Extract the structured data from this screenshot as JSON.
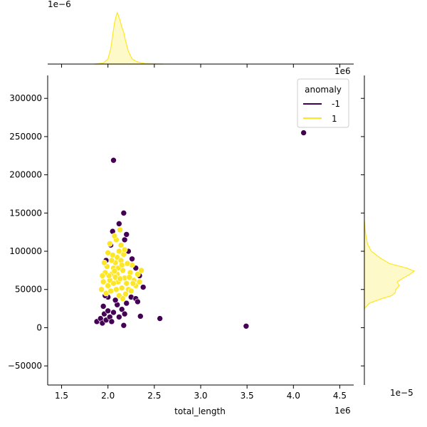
{
  "chart_data": {
    "type": "scatter",
    "title": "",
    "xlabel": "total_length",
    "ylabel": "",
    "x_scale_label": "1e6",
    "y_scale_label": "",
    "top_marginal_scale_label": "1e−6",
    "right_marginal_scale_label": "1e−5",
    "xlim": [
      1.35,
      4.65
    ],
    "ylim": [
      -75000,
      330000
    ],
    "x_ticks": [
      1.5,
      2.0,
      2.5,
      3.0,
      3.5,
      4.0,
      4.5
    ],
    "x_tick_labels": [
      "1.5",
      "2.0",
      "2.5",
      "3.0",
      "3.5",
      "4.0",
      "4.5"
    ],
    "y_ticks": [
      -50000,
      0,
      50000,
      100000,
      150000,
      200000,
      250000,
      300000
    ],
    "y_tick_labels": [
      "−50000",
      "0",
      "50000",
      "100000",
      "150000",
      "200000",
      "250000",
      "300000"
    ],
    "grid": false,
    "legend": {
      "title": "anomaly",
      "placement": "upper-right",
      "entries": [
        {
          "label": "-1",
          "color": "#440154"
        },
        {
          "label": "1",
          "color": "#fde725"
        }
      ]
    },
    "series": [
      {
        "name": "-1",
        "color": "#440154",
        "points": [
          [
            1.88,
            8000
          ],
          [
            1.92,
            12000
          ],
          [
            1.94,
            6000
          ],
          [
            1.96,
            18000
          ],
          [
            1.98,
            10000
          ],
          [
            2.0,
            22000
          ],
          [
            2.02,
            14000
          ],
          [
            2.04,
            8000
          ],
          [
            2.06,
            20000
          ],
          [
            1.95,
            28000
          ],
          [
            2.0,
            40000
          ],
          [
            1.97,
            42000
          ],
          [
            2.1,
            30000
          ],
          [
            2.15,
            24000
          ],
          [
            2.2,
            32000
          ],
          [
            2.25,
            40000
          ],
          [
            2.3,
            38000
          ],
          [
            2.32,
            34000
          ],
          [
            2.35,
            15000
          ],
          [
            2.38,
            53000
          ],
          [
            2.34,
            68000
          ],
          [
            2.28,
            62000
          ],
          [
            2.3,
            78000
          ],
          [
            2.26,
            90000
          ],
          [
            2.22,
            100000
          ],
          [
            2.18,
            115000
          ],
          [
            2.2,
            122000
          ],
          [
            2.17,
            150000
          ],
          [
            2.12,
            136000
          ],
          [
            2.05,
            126000
          ],
          [
            2.03,
            108000
          ],
          [
            1.98,
            88000
          ],
          [
            2.06,
            219000
          ],
          [
            2.17,
            3000
          ],
          [
            2.56,
            12000
          ],
          [
            3.49,
            2000
          ],
          [
            4.11,
            255000
          ],
          [
            2.08,
            36000
          ],
          [
            2.12,
            14000
          ],
          [
            2.18,
            18000
          ]
        ]
      },
      {
        "name": "1",
        "color": "#fde725",
        "points": [
          [
            1.98,
            45000
          ],
          [
            2.0,
            55000
          ],
          [
            2.02,
            62000
          ],
          [
            2.04,
            70000
          ],
          [
            2.06,
            78000
          ],
          [
            2.08,
            85000
          ],
          [
            2.1,
            92000
          ],
          [
            2.12,
            100000
          ],
          [
            2.14,
            108000
          ],
          [
            2.16,
            75000
          ],
          [
            2.18,
            65000
          ],
          [
            2.2,
            58000
          ],
          [
            2.22,
            50000
          ],
          [
            2.24,
            72000
          ],
          [
            2.26,
            82000
          ],
          [
            2.05,
            95000
          ],
          [
            2.09,
            115000
          ],
          [
            2.13,
            128000
          ],
          [
            2.07,
            120000
          ],
          [
            2.11,
            60000
          ],
          [
            2.15,
            52000
          ],
          [
            2.19,
            44000
          ],
          [
            2.03,
            48000
          ],
          [
            2.01,
            68000
          ],
          [
            1.99,
            80000
          ],
          [
            1.97,
            72000
          ],
          [
            1.95,
            60000
          ],
          [
            1.93,
            50000
          ],
          [
            2.28,
            62000
          ],
          [
            2.3,
            55000
          ],
          [
            2.32,
            70000
          ],
          [
            2.34,
            60000
          ],
          [
            2.36,
            75000
          ],
          [
            2.1,
            70000
          ],
          [
            2.14,
            88000
          ],
          [
            2.17,
            96000
          ],
          [
            2.21,
            84000
          ],
          [
            2.06,
            58000
          ],
          [
            2.12,
            42000
          ],
          [
            2.16,
            38000
          ],
          [
            2.08,
            66000
          ],
          [
            2.04,
            88000
          ],
          [
            2.0,
            98000
          ],
          [
            2.02,
            110000
          ],
          [
            2.18,
            102000
          ],
          [
            2.23,
            66000
          ],
          [
            2.25,
            48000
          ],
          [
            2.27,
            58000
          ],
          [
            1.96,
            85000
          ],
          [
            1.94,
            68000
          ],
          [
            2.11,
            78000
          ],
          [
            2.13,
            64000
          ],
          [
            2.09,
            50000
          ],
          [
            2.07,
            74000
          ],
          [
            2.15,
            82000
          ]
        ]
      }
    ],
    "top_marginal": {
      "type": "kde",
      "x": [
        1.85,
        1.95,
        2.0,
        2.03,
        2.05,
        2.07,
        2.09,
        2.1,
        2.11,
        2.13,
        2.15,
        2.17,
        2.19,
        2.22,
        2.26,
        2.32,
        2.4,
        2.6
      ],
      "density": [
        0.0,
        0.02,
        0.1,
        0.3,
        0.55,
        0.8,
        0.95,
        1.0,
        0.96,
        0.85,
        0.72,
        0.62,
        0.45,
        0.25,
        0.1,
        0.04,
        0.01,
        0.0
      ]
    },
    "right_marginal": {
      "type": "kde",
      "y": [
        25000,
        32000,
        38000,
        42000,
        46000,
        50000,
        55000,
        60000,
        65000,
        70000,
        74000,
        78000,
        84000,
        92000,
        100000,
        110000,
        125000,
        140000
      ],
      "density": [
        0.0,
        0.1,
        0.35,
        0.55,
        0.62,
        0.63,
        0.7,
        0.66,
        0.78,
        0.92,
        1.0,
        0.85,
        0.5,
        0.3,
        0.14,
        0.06,
        0.02,
        0.0
      ]
    }
  }
}
